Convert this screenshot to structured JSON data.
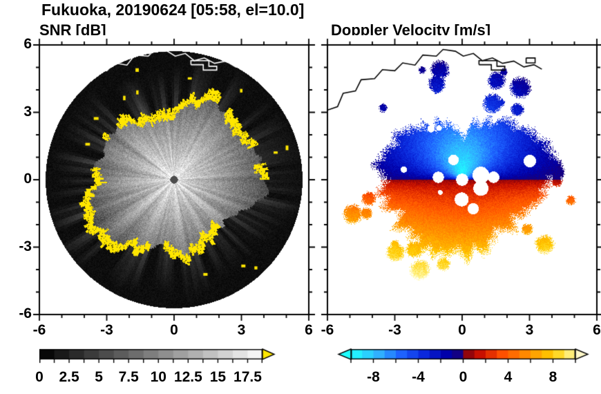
{
  "title": "Fukuoka, 20190624 [05:58, el=10.0]",
  "station": "Fukuoka",
  "date": "20190624",
  "time": "05:58",
  "elevation_deg": "10.0",
  "panels": {
    "snr": {
      "title": "SNR [dB]",
      "x_ticks": [
        -6,
        -3,
        0,
        3,
        6
      ],
      "y_ticks": [
        6,
        3,
        0,
        -3,
        -6
      ],
      "x_range": [
        -6,
        6
      ],
      "y_range": [
        -6,
        6
      ]
    },
    "doppler": {
      "title": "Doppler Velocity [m/s]",
      "x_ticks": [
        -6,
        -3,
        0,
        3,
        6
      ],
      "y_ticks": [
        6,
        3,
        0,
        -3,
        -6
      ],
      "x_range": [
        -6,
        6
      ],
      "y_range": [
        -6,
        6
      ]
    }
  },
  "colorbars": {
    "snr": {
      "values": [
        0,
        2.5,
        5,
        7.5,
        10,
        12.5,
        15,
        17.5
      ],
      "range": [
        0,
        18.75
      ],
      "colormap": "grayscale",
      "min_color": "#000000",
      "max_color": "#fcfcfc",
      "overflow_color": "#ffe600"
    },
    "doppler": {
      "values": [
        -8,
        -4,
        0,
        4,
        8
      ],
      "range": [
        -10,
        10
      ],
      "stops_negative": [
        [
          -10,
          "#20ffff"
        ],
        [
          -7.5,
          "#30b0ff"
        ],
        [
          -5.5,
          "#1e62ff"
        ],
        [
          -3.5,
          "#0a28dc"
        ],
        [
          -1.5,
          "#0000aa"
        ],
        [
          0,
          "#1c0073"
        ]
      ],
      "stops_positive": [
        [
          0,
          "#780010"
        ],
        [
          1.5,
          "#c81000"
        ],
        [
          3.5,
          "#ff5000"
        ],
        [
          6,
          "#ff9600"
        ],
        [
          8,
          "#ffcd00"
        ],
        [
          10,
          "#fff8a0"
        ]
      ],
      "under_color": "#20ffff",
      "over_color": "#fff8c8"
    }
  },
  "coastline": [
    [
      [
        -6.0,
        3.1
      ],
      [
        -5.55,
        3.25
      ],
      [
        -5.3,
        3.85
      ],
      [
        -4.75,
        3.95
      ],
      [
        -4.5,
        4.45
      ],
      [
        -3.9,
        4.5
      ],
      [
        -3.55,
        4.9
      ],
      [
        -3.0,
        4.85
      ],
      [
        -2.65,
        5.2
      ],
      [
        -2.1,
        5.1
      ],
      [
        -1.75,
        5.55
      ],
      [
        -1.15,
        5.5
      ],
      [
        -0.85,
        5.8
      ],
      [
        -0.3,
        5.72
      ],
      [
        0.05,
        5.5
      ],
      [
        0.5,
        5.62
      ],
      [
        0.9,
        5.3
      ],
      [
        1.35,
        5.42
      ],
      [
        1.8,
        5.18
      ],
      [
        2.3,
        5.28
      ],
      [
        2.75,
        5.02
      ],
      [
        3.2,
        5.12
      ],
      [
        3.55,
        4.92
      ]
    ],
    [
      [
        0.75,
        5.12
      ],
      [
        1.3,
        5.12
      ],
      [
        1.3,
        4.88
      ],
      [
        1.9,
        4.88
      ],
      [
        1.9,
        5.05
      ],
      [
        1.55,
        5.05
      ],
      [
        1.55,
        5.3
      ],
      [
        0.75,
        5.3
      ],
      [
        0.75,
        5.12
      ]
    ],
    [
      [
        2.85,
        5.42
      ],
      [
        3.25,
        5.42
      ],
      [
        3.25,
        5.2
      ],
      [
        2.85,
        5.2
      ],
      [
        2.85,
        5.42
      ]
    ]
  ],
  "chart_data": [
    {
      "type": "heatmap",
      "name": "snr",
      "title": "SNR [dB]",
      "x_ticks": [
        -6,
        -3,
        0,
        3,
        6
      ],
      "y_ticks": [
        6,
        3,
        0,
        -3,
        -6
      ],
      "x_range": [
        -6,
        6
      ],
      "y_range": [
        -6,
        6
      ],
      "colorbar_ticks": [
        0,
        2.5,
        5,
        7.5,
        10,
        12.5,
        15,
        17.5
      ],
      "value_range": [
        0,
        18.75
      ],
      "radar_disk_radius_km": 5.7,
      "echo_radius_mean_km": 3.5,
      "radial_profile_db": [
        [
          0,
          17
        ],
        [
          0.5,
          16
        ],
        [
          1,
          15
        ],
        [
          1.5,
          13.5
        ],
        [
          2,
          12
        ],
        [
          2.5,
          10.5
        ],
        [
          3,
          9
        ],
        [
          3.5,
          7
        ]
      ],
      "features": [
        "black no-signal disk out to ~5.7 km",
        "bright grainy echo core with radial streaks, SNR decreasing outward",
        "saturated (>17.5 dB) yellow cells rimming the ragged echo edge near r=3.5 km",
        "dark dot at radar position (0,0)",
        "white coastline traced along the top of the disk"
      ]
    },
    {
      "type": "heatmap",
      "name": "doppler_velocity",
      "title": "Doppler Velocity [m/s]",
      "x_ticks": [
        -6,
        -3,
        0,
        3,
        6
      ],
      "y_ticks": [
        6,
        3,
        0,
        -3,
        -6
      ],
      "x_range": [
        -6,
        6
      ],
      "y_range": [
        -6,
        6
      ],
      "colorbar_ticks": [
        -8,
        -4,
        0,
        4,
        8
      ],
      "value_range": [
        -10,
        10
      ],
      "north_profile_ms": [
        [
          0.5,
          -9
        ],
        [
          1.5,
          -8
        ],
        [
          2.5,
          -6
        ],
        [
          3.5,
          -4
        ],
        [
          4.5,
          -2
        ]
      ],
      "south_profile_ms": [
        [
          0.5,
          2
        ],
        [
          1.5,
          4
        ],
        [
          2.5,
          6
        ],
        [
          3.5,
          8
        ],
        [
          4.5,
          9.5
        ]
      ],
      "features": [
        "blue (toward-radar) echoes north: cyan near the radar fading to dark navy outward",
        "sharp zero-velocity boundary running east-west through the radar",
        "red to orange to yellow (away) echoes south, speed increasing outward",
        "white data gap at radar position",
        "scattered detached echo patches near r=4-5 km",
        "black coastline along the top"
      ]
    }
  ]
}
